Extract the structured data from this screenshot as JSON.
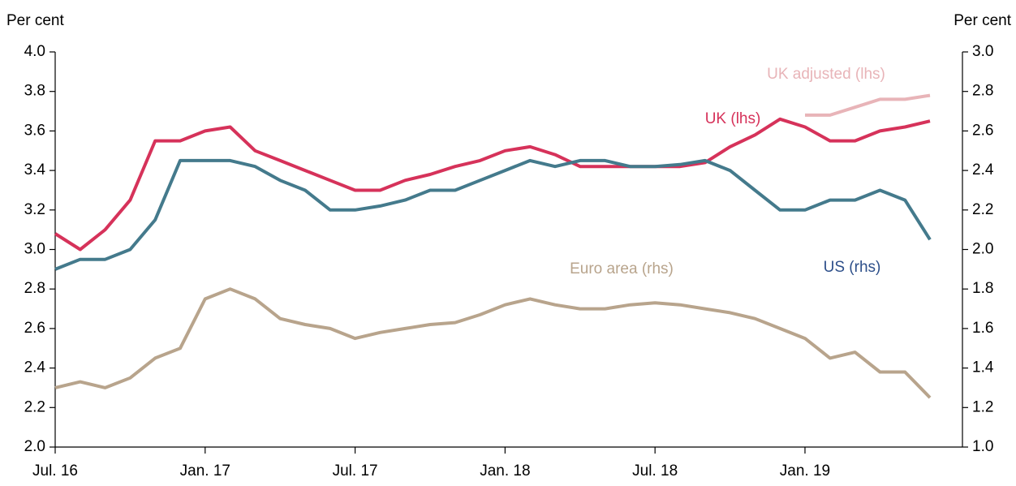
{
  "chart_data": {
    "type": "line",
    "y_label": "Per cent",
    "y2_label": "Per cent",
    "categories": [
      "Jul. 16",
      null,
      null,
      null,
      null,
      null,
      "Jan. 17",
      null,
      null,
      null,
      null,
      null,
      "Jul. 17",
      null,
      null,
      null,
      null,
      null,
      "Jan. 18",
      null,
      null,
      null,
      null,
      null,
      "Jul. 18",
      null,
      null,
      null,
      null,
      null,
      "Jan. 19",
      null,
      null,
      null,
      null,
      null
    ],
    "ylim": [
      2,
      4
    ],
    "yticks": [
      {
        "value": 2,
        "label": "2.0"
      },
      {
        "value": 2.2,
        "label": "2.2"
      },
      {
        "value": 2.4,
        "label": "2.4"
      },
      {
        "value": 2.6,
        "label": "2.6"
      },
      {
        "value": 2.8,
        "label": "2.8"
      },
      {
        "value": 3,
        "label": "3.0"
      },
      {
        "value": 3.2,
        "label": "3.2"
      },
      {
        "value": 3.4,
        "label": "3.4"
      },
      {
        "value": 3.6,
        "label": "3.6"
      },
      {
        "value": 3.8,
        "label": "3.8"
      },
      {
        "value": 4,
        "label": "4.0"
      }
    ],
    "y2lim": [
      1,
      3
    ],
    "y2ticks": [
      {
        "value": 1,
        "label": "1.0"
      },
      {
        "value": 1.2,
        "label": "1.2"
      },
      {
        "value": 1.4,
        "label": "1.4"
      },
      {
        "value": 1.6,
        "label": "1.6"
      },
      {
        "value": 1.8,
        "label": "1.8"
      },
      {
        "value": 2,
        "label": "2.0"
      },
      {
        "value": 2.2,
        "label": "2.2"
      },
      {
        "value": 2.4,
        "label": "2.4"
      },
      {
        "value": 2.6,
        "label": "2.6"
      },
      {
        "value": 2.8,
        "label": "2.8"
      },
      {
        "value": 3,
        "label": "3.0"
      }
    ],
    "series": [
      {
        "name": "UK adjusted (lhs)",
        "color": "#e8b4b8",
        "axis": "y",
        "values": [
          null,
          null,
          null,
          null,
          null,
          null,
          null,
          null,
          null,
          null,
          null,
          null,
          null,
          null,
          null,
          null,
          null,
          null,
          null,
          null,
          null,
          null,
          null,
          null,
          null,
          null,
          null,
          null,
          null,
          null,
          3.68,
          3.68,
          3.72,
          3.76,
          3.76,
          3.78
        ]
      },
      {
        "name": "UK (lhs)",
        "color": "#d6325a",
        "axis": "y",
        "values": [
          3.08,
          3.0,
          3.1,
          3.25,
          3.55,
          3.55,
          3.6,
          3.62,
          3.5,
          3.45,
          3.4,
          3.35,
          3.3,
          3.3,
          3.35,
          3.38,
          3.42,
          3.45,
          3.5,
          3.52,
          3.48,
          3.42,
          3.42,
          3.42,
          3.42,
          3.42,
          3.44,
          3.52,
          3.58,
          3.66,
          3.62,
          3.55,
          3.55,
          3.6,
          3.62,
          3.65
        ]
      },
      {
        "name": "US (rhs)",
        "color": "#447a8c",
        "axis": "y2",
        "values": [
          1.9,
          1.95,
          1.95,
          2.0,
          2.15,
          2.45,
          2.45,
          2.45,
          2.42,
          2.35,
          2.3,
          2.2,
          2.2,
          2.22,
          2.25,
          2.3,
          2.3,
          2.35,
          2.4,
          2.45,
          2.42,
          2.45,
          2.45,
          2.42,
          2.42,
          2.43,
          2.45,
          2.4,
          2.3,
          2.2,
          2.2,
          2.25,
          2.25,
          2.3,
          2.25,
          2.05
        ]
      },
      {
        "name": "Euro area (rhs)",
        "color": "#b8a48c",
        "axis": "y2",
        "values": [
          1.3,
          1.33,
          1.3,
          1.35,
          1.45,
          1.5,
          1.75,
          1.8,
          1.75,
          1.65,
          1.62,
          1.6,
          1.55,
          1.58,
          1.6,
          1.62,
          1.63,
          1.67,
          1.72,
          1.75,
          1.72,
          1.7,
          1.7,
          1.72,
          1.73,
          1.72,
          1.7,
          1.68,
          1.65,
          1.6,
          1.55,
          1.45,
          1.48,
          1.38,
          1.38,
          1.25
        ]
      }
    ]
  }
}
